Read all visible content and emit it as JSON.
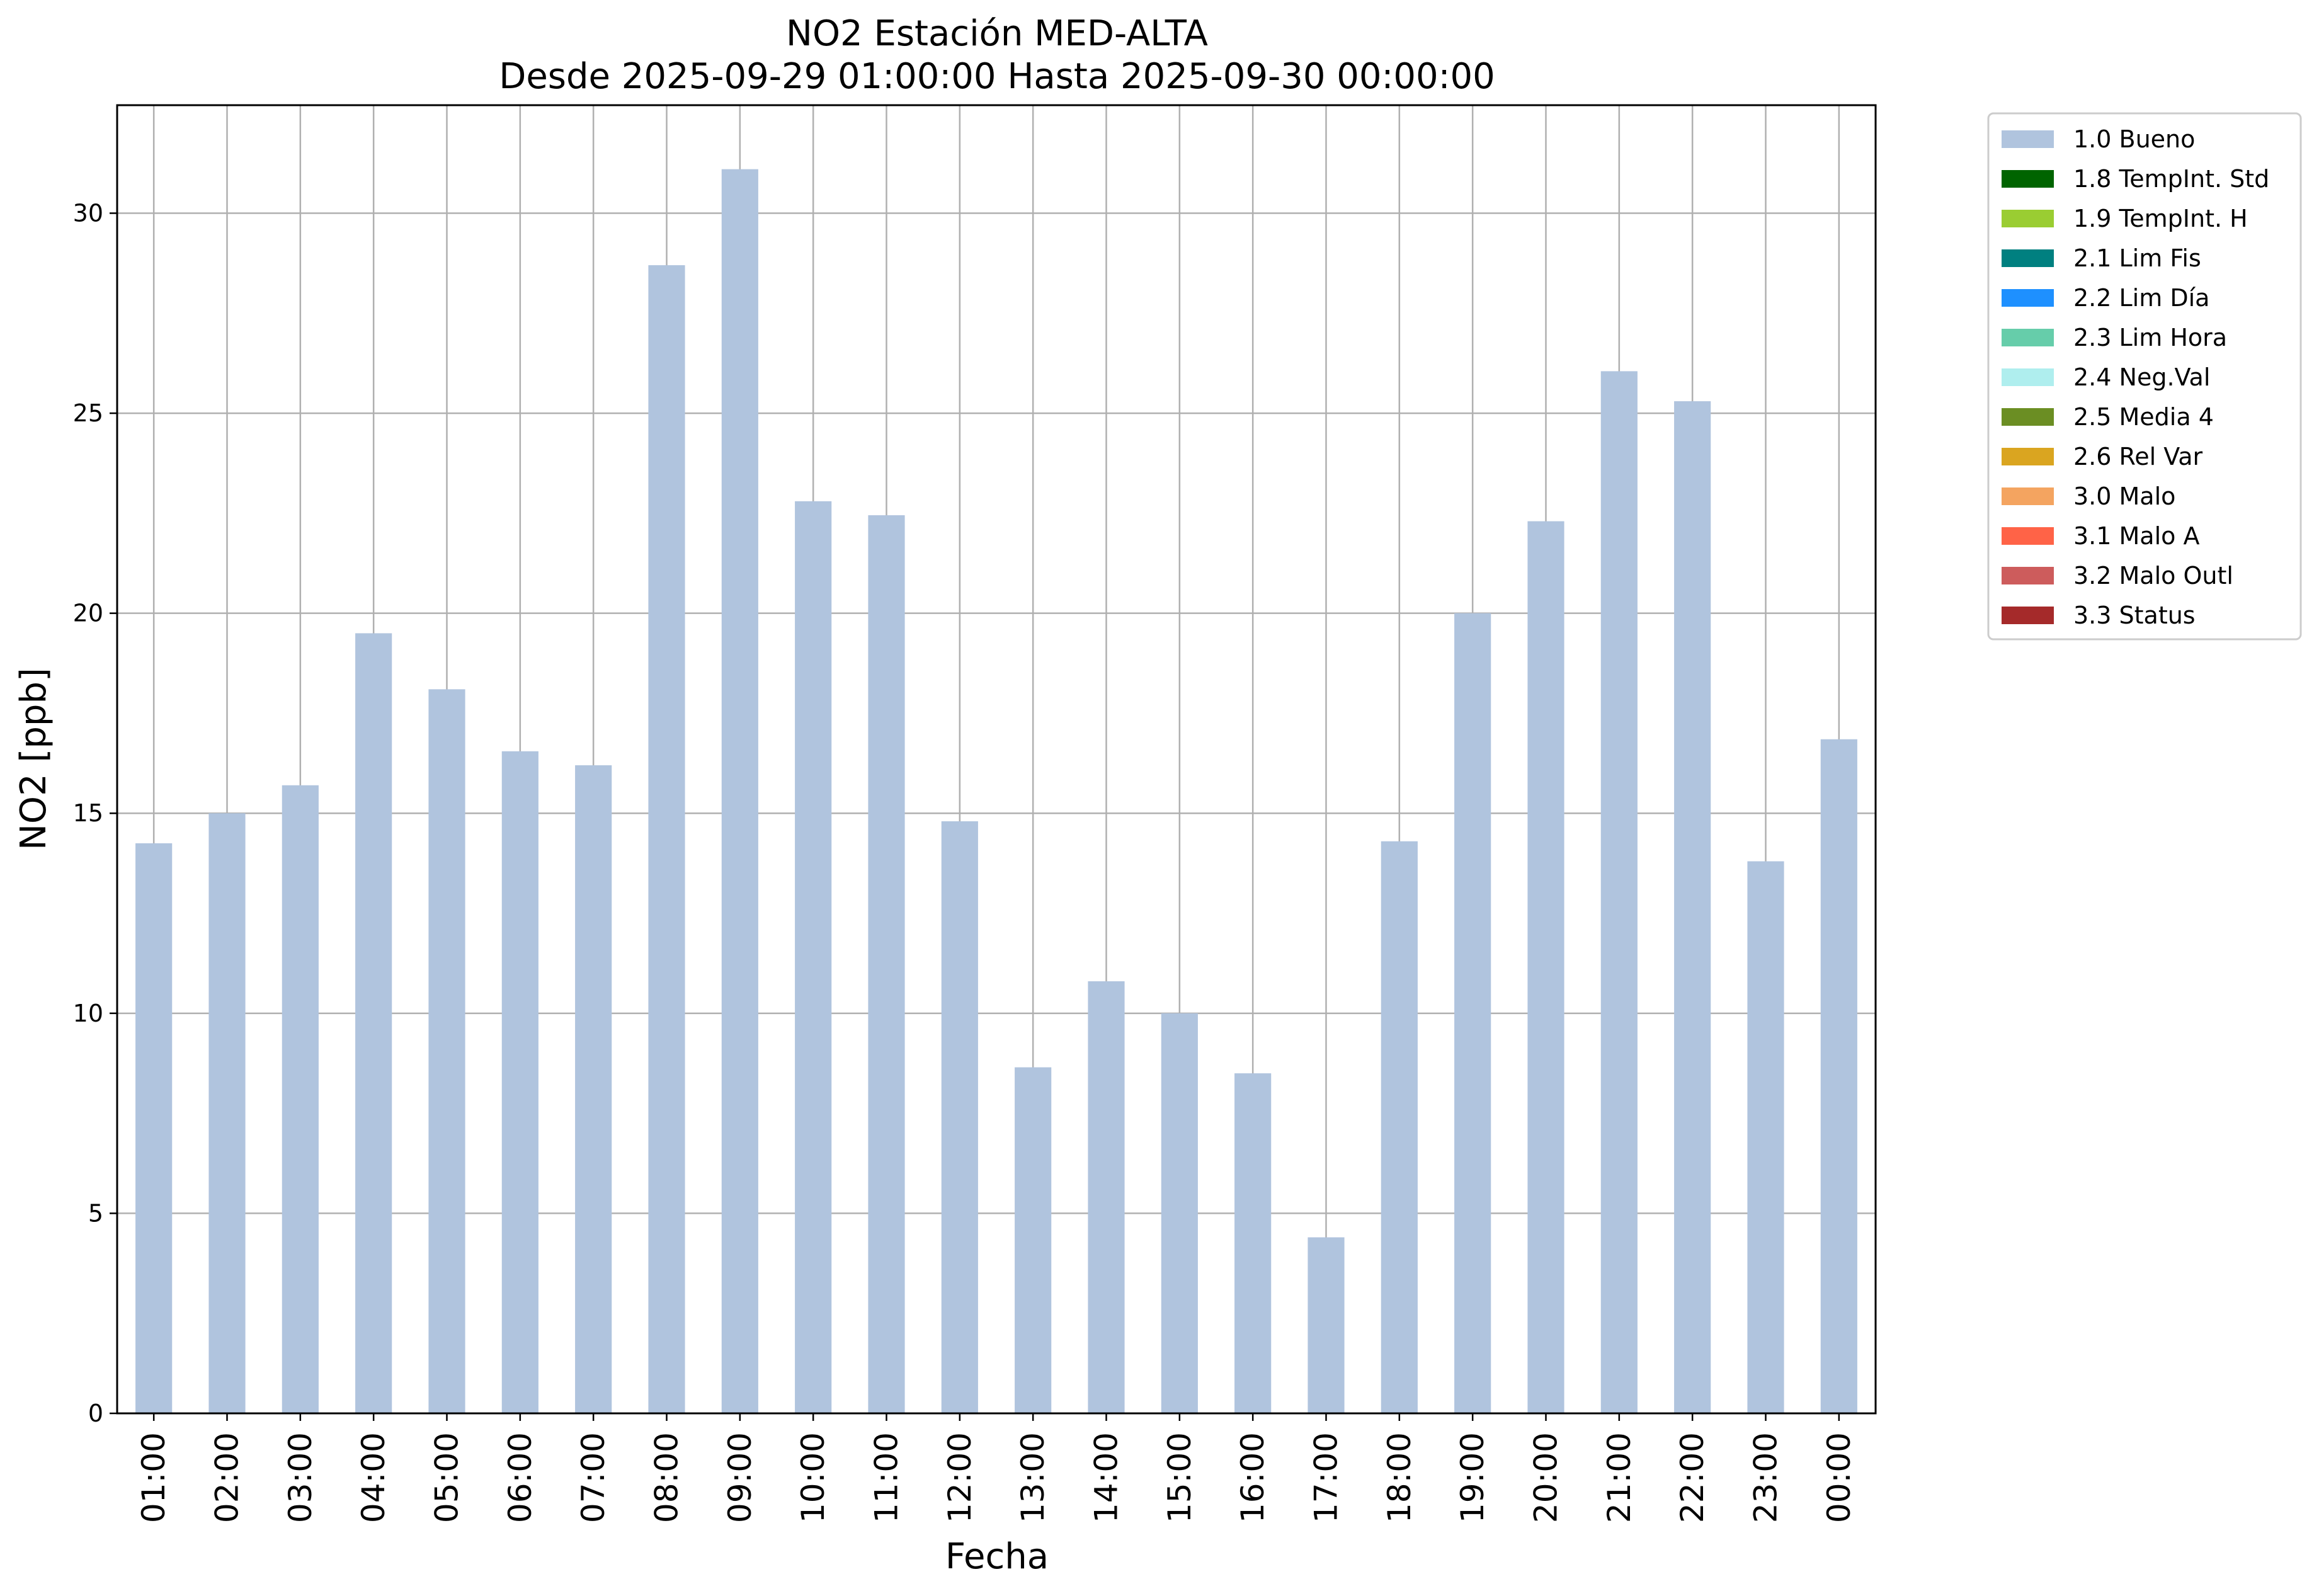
{
  "chart_data": {
    "type": "bar",
    "title": "NO2 Estación MED-ALTA",
    "subtitle": "Desde 2025-09-29 01:00:00 Hasta 2025-09-30 00:00:00",
    "xlabel": "Fecha",
    "ylabel": "NO2 [ppb]",
    "ylim": [
      0,
      32.7
    ],
    "yticks": [
      0,
      5,
      10,
      15,
      20,
      25,
      30
    ],
    "grid": true,
    "legend_position": "outside-top-right",
    "categories": [
      "01:00",
      "02:00",
      "03:00",
      "04:00",
      "05:00",
      "06:00",
      "07:00",
      "08:00",
      "09:00",
      "10:00",
      "11:00",
      "12:00",
      "13:00",
      "14:00",
      "15:00",
      "16:00",
      "17:00",
      "18:00",
      "19:00",
      "20:00",
      "21:00",
      "22:00",
      "23:00",
      "00:00"
    ],
    "series": [
      {
        "name": "1.0 Bueno",
        "color": "#b0c4de",
        "values": [
          14.25,
          15.0,
          15.7,
          19.5,
          18.1,
          16.55,
          16.2,
          28.7,
          31.1,
          22.8,
          22.45,
          14.8,
          8.65,
          10.8,
          10.0,
          8.5,
          4.4,
          14.3,
          20.0,
          22.3,
          26.05,
          25.3,
          13.8,
          16.85
        ]
      }
    ],
    "legend": [
      {
        "label": "1.0 Bueno",
        "color": "#b0c4de"
      },
      {
        "label": "1.8 TempInt. Std",
        "color": "#006400"
      },
      {
        "label": "1.9 TempInt. H",
        "color": "#9acd32"
      },
      {
        "label": "2.1 Lim Fis",
        "color": "#008080"
      },
      {
        "label": "2.2 Lim Día",
        "color": "#1e90ff"
      },
      {
        "label": "2.3 Lim Hora",
        "color": "#66cdaa"
      },
      {
        "label": "2.4 Neg.Val",
        "color": "#afeeee"
      },
      {
        "label": "2.5 Media 4",
        "color": "#6b8e23"
      },
      {
        "label": "2.6 Rel Var",
        "color": "#daa520"
      },
      {
        "label": "3.0 Malo",
        "color": "#f4a460"
      },
      {
        "label": "3.1 Malo A",
        "color": "#ff6347"
      },
      {
        "label": "3.2 Malo Outl",
        "color": "#cd5c5c"
      },
      {
        "label": "3.3 Status",
        "color": "#a52a2a"
      }
    ]
  }
}
